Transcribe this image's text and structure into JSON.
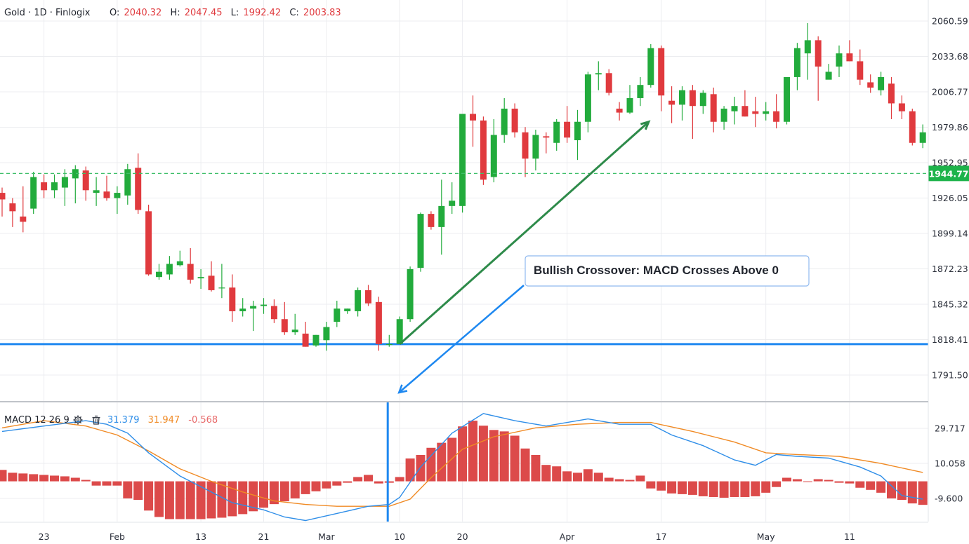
{
  "chart_data": {
    "type": "candlestick",
    "symbol": "Gold",
    "interval": "1D",
    "provider": "Finlogix",
    "ohlc_header": {
      "o_label": "O:",
      "o": "2040.32",
      "h_label": "H:",
      "h": "2047.45",
      "l_label": "L:",
      "l": "1992.42",
      "c_label": "C:",
      "c": "2003.83"
    },
    "price_axis": {
      "ticks": [
        "2060.59",
        "2033.68",
        "2006.77",
        "1979.86",
        "1952.95",
        "1926.05",
        "1899.14",
        "1872.23",
        "1845.32",
        "1818.41",
        "1791.50"
      ],
      "range": [
        1765,
        2075
      ]
    },
    "current_price": "1944.77",
    "support_level": 1815,
    "x_ticks": [
      {
        "label": "23",
        "index": 4
      },
      {
        "label": "Feb",
        "index": 11
      },
      {
        "label": "13",
        "index": 19
      },
      {
        "label": "21",
        "index": 25
      },
      {
        "label": "Mar",
        "index": 31
      },
      {
        "label": "10",
        "index": 38
      },
      {
        "label": "20",
        "index": 44
      },
      {
        "label": "Apr",
        "index": 54
      },
      {
        "label": "17",
        "index": 63
      },
      {
        "label": "May",
        "index": 73
      },
      {
        "label": "11",
        "index": 81
      }
    ],
    "candles": [
      [
        1930,
        1934,
        1912,
        1925
      ],
      [
        1922,
        1926,
        1904,
        1916
      ],
      [
        1912,
        1935,
        1900,
        1908
      ],
      [
        1918,
        1946,
        1914,
        1942
      ],
      [
        1938,
        1944,
        1926,
        1932
      ],
      [
        1932,
        1944,
        1926,
        1938
      ],
      [
        1934,
        1948,
        1920,
        1942
      ],
      [
        1941,
        1951,
        1922,
        1948
      ],
      [
        1947,
        1950,
        1924,
        1932
      ],
      [
        1930,
        1942,
        1920,
        1932
      ],
      [
        1931,
        1943,
        1924,
        1926
      ],
      [
        1926,
        1935,
        1914,
        1930
      ],
      [
        1928,
        1952,
        1921,
        1948
      ],
      [
        1949,
        1960,
        1914,
        1917
      ],
      [
        1916,
        1921,
        1867,
        1868
      ],
      [
        1866,
        1876,
        1864,
        1870
      ],
      [
        1868,
        1882,
        1864,
        1876
      ],
      [
        1875,
        1886,
        1874,
        1878
      ],
      [
        1876,
        1888,
        1861,
        1864
      ],
      [
        1865,
        1872,
        1857,
        1866
      ],
      [
        1867,
        1878,
        1855,
        1856
      ],
      [
        1858,
        1876,
        1850,
        1858
      ],
      [
        1858,
        1868,
        1832,
        1840
      ],
      [
        1840,
        1850,
        1836,
        1842
      ],
      [
        1842,
        1848,
        1825,
        1844
      ],
      [
        1844,
        1850,
        1838,
        1845
      ],
      [
        1844,
        1849,
        1831,
        1834
      ],
      [
        1834,
        1847,
        1822,
        1824
      ],
      [
        1824,
        1838,
        1822,
        1826
      ],
      [
        1823,
        1832,
        1813,
        1813
      ],
      [
        1814,
        1822,
        1813,
        1822
      ],
      [
        1818,
        1832,
        1810,
        1828
      ],
      [
        1832,
        1848,
        1828,
        1842
      ],
      [
        1840,
        1842,
        1838,
        1842
      ],
      [
        1840,
        1858,
        1836,
        1856
      ],
      [
        1856,
        1860,
        1844,
        1846
      ],
      [
        1847,
        1851,
        1810,
        1815
      ],
      [
        1815,
        1822,
        1813,
        1815
      ],
      [
        1815,
        1836,
        1815,
        1834
      ],
      [
        1834,
        1874,
        1832,
        1872
      ],
      [
        1873,
        1915,
        1870,
        1914
      ],
      [
        1914,
        1916,
        1902,
        1904
      ],
      [
        1904,
        1940,
        1883,
        1920
      ],
      [
        1920,
        1938,
        1914,
        1924
      ],
      [
        1920,
        1990,
        1915,
        1990
      ],
      [
        1990,
        2004,
        1965,
        1985
      ],
      [
        1985,
        1988,
        1936,
        1940
      ],
      [
        1942,
        1986,
        1938,
        1974
      ],
      [
        1974,
        2002,
        1968,
        1994
      ],
      [
        1994,
        1998,
        1972,
        1976
      ],
      [
        1976,
        1980,
        1942,
        1956
      ],
      [
        1956,
        1978,
        1947,
        1974
      ],
      [
        1973,
        1976,
        1960,
        1972
      ],
      [
        1968,
        1986,
        1962,
        1984
      ],
      [
        1984,
        1996,
        1968,
        1972
      ],
      [
        1970,
        1993,
        1955,
        1984
      ],
      [
        1984,
        2022,
        1976,
        2020
      ],
      [
        2020,
        2030,
        2008,
        2021
      ],
      [
        2021,
        2024,
        2004,
        2006
      ],
      [
        1994,
        1999,
        1985,
        1991
      ],
      [
        1991,
        2012,
        1990,
        2002
      ],
      [
        2002,
        2018,
        1996,
        2012
      ],
      [
        2012,
        2043,
        2010,
        2040
      ],
      [
        2040,
        2042,
        1992,
        2004
      ],
      [
        2000,
        2011,
        1983,
        1997
      ],
      [
        1997,
        2011,
        1985,
        2008
      ],
      [
        2008,
        2012,
        1971,
        1996
      ],
      [
        1996,
        2008,
        1990,
        2006
      ],
      [
        2005,
        2010,
        1976,
        1984
      ],
      [
        1984,
        1996,
        1978,
        1994
      ],
      [
        1992,
        2003,
        1982,
        1996
      ],
      [
        1996,
        2008,
        1988,
        1988
      ],
      [
        1992,
        2003,
        1980,
        1990
      ],
      [
        1990,
        1999,
        1985,
        1992
      ],
      [
        1992,
        2005,
        1979,
        1984
      ],
      [
        1984,
        2016,
        1982,
        2018
      ],
      [
        2018,
        2044,
        2008,
        2040
      ],
      [
        2036,
        2059,
        2016,
        2046
      ],
      [
        2046,
        2049,
        2000,
        2026
      ],
      [
        2016,
        2028,
        2018,
        2022
      ],
      [
        2026,
        2042,
        2018,
        2036
      ],
      [
        2036,
        2046,
        2030,
        2030
      ],
      [
        2030,
        2039,
        2012,
        2016
      ],
      [
        2014,
        2020,
        2006,
        2010
      ],
      [
        2008,
        2022,
        2004,
        2018
      ],
      [
        2013,
        2018,
        1986,
        1998
      ],
      [
        1998,
        2004,
        1986,
        1992
      ],
      [
        1992,
        1994,
        1966,
        1968
      ],
      [
        1968,
        1982,
        1964,
        1976
      ]
    ],
    "indicator": {
      "name": "MACD",
      "params": "12 26 9",
      "macd_value": "31.379",
      "signal_value": "31.947",
      "histogram_value": "-0.568",
      "axis_ticks": [
        "29.717",
        "10.058",
        "-9.600"
      ],
      "range": [
        -22,
        52
      ],
      "macd": [
        [
          0,
          28
        ],
        [
          4,
          31
        ],
        [
          8,
          34
        ],
        [
          10,
          32
        ],
        [
          12,
          27
        ],
        [
          14,
          16
        ],
        [
          17,
          3
        ],
        [
          19,
          -3
        ],
        [
          22,
          -12
        ],
        [
          25,
          -16
        ],
        [
          27,
          -20
        ],
        [
          29,
          -22
        ],
        [
          32,
          -18
        ],
        [
          35,
          -14
        ],
        [
          37,
          -13
        ],
        [
          38,
          -9
        ],
        [
          40,
          8
        ],
        [
          43,
          27
        ],
        [
          46,
          38
        ],
        [
          49,
          34
        ],
        [
          52,
          31
        ],
        [
          56,
          35
        ],
        [
          59,
          32
        ],
        [
          62,
          32
        ],
        [
          64,
          26
        ],
        [
          67,
          20
        ],
        [
          70,
          12
        ],
        [
          72,
          9
        ],
        [
          74,
          15
        ],
        [
          76,
          14
        ],
        [
          79,
          13
        ],
        [
          82,
          8
        ],
        [
          84,
          3
        ],
        [
          86,
          -8
        ],
        [
          88,
          -10
        ]
      ],
      "signal": [
        [
          0,
          30
        ],
        [
          4,
          34
        ],
        [
          8,
          31
        ],
        [
          11,
          26
        ],
        [
          14,
          17
        ],
        [
          17,
          7
        ],
        [
          20,
          0
        ],
        [
          23,
          -6
        ],
        [
          26,
          -11
        ],
        [
          29,
          -13
        ],
        [
          32,
          -14
        ],
        [
          35,
          -14
        ],
        [
          37,
          -14
        ],
        [
          39,
          -10
        ],
        [
          41,
          2
        ],
        [
          44,
          18
        ],
        [
          47,
          25
        ],
        [
          51,
          30
        ],
        [
          55,
          32
        ],
        [
          59,
          33
        ],
        [
          62,
          33
        ],
        [
          66,
          28
        ],
        [
          70,
          22
        ],
        [
          73,
          16
        ],
        [
          76,
          15
        ],
        [
          80,
          14
        ],
        [
          84,
          10
        ],
        [
          88,
          5
        ]
      ],
      "histogram": [
        1.6,
        1.2,
        1.1,
        1.0,
        0.9,
        0.8,
        0.7,
        0.5,
        0.2,
        -0.6,
        -0.6,
        -0.6,
        -2.4,
        -2.6,
        -4.1,
        -5.0,
        -5.3,
        -5.3,
        -5.3,
        -5.3,
        -5.2,
        -5.1,
        -4.9,
        -4.6,
        -4.2,
        -3.7,
        -3.2,
        -2.8,
        -2.4,
        -1.8,
        -1.4,
        -1.0,
        -0.6,
        -0.2,
        0.6,
        0.9,
        -0.3,
        -0.2,
        0.6,
        3.2,
        3.7,
        4.7,
        5.4,
        6.1,
        7.7,
        8.5,
        7.8,
        7.2,
        7.0,
        6.4,
        4.6,
        3.7,
        2.3,
        2.1,
        1.4,
        1.2,
        1.7,
        1.2,
        0.5,
        0.3,
        0.2,
        0.8,
        -1.0,
        -1.3,
        -1.7,
        -1.8,
        -1.9,
        -2.1,
        -2.2,
        -2.3,
        -2.2,
        -2.2,
        -2.1,
        -1.6,
        -0.8,
        0.5,
        0.3,
        -0.1,
        0.3,
        0.2,
        -0.2,
        -0.3,
        -0.9,
        -1.2,
        -1.6,
        -2.4,
        -2.6,
        -3.1,
        -3.3
      ]
    },
    "annotations": {
      "callout_text": "Bullish Crossover: MACD Crosses Above 0",
      "arrow_from_index": 38,
      "arrow_to_index": 61,
      "arrow_from_price": 1815,
      "arrow_to_price": 1984
    },
    "colors": {
      "up": "#22ab3c",
      "down": "#e03a3e",
      "macd_line": "#2f8ee8",
      "signal_line": "#f08a24",
      "hist": "#d93b3b",
      "support_line": "#1e88f0",
      "trend_arrow": "#2e8b4a",
      "current_price_bg": "#1db34a",
      "grid": "#ecedf0",
      "pane_divider": "#c0c3c9",
      "header_value": "#e03a3e",
      "text": "#1f232c"
    }
  }
}
